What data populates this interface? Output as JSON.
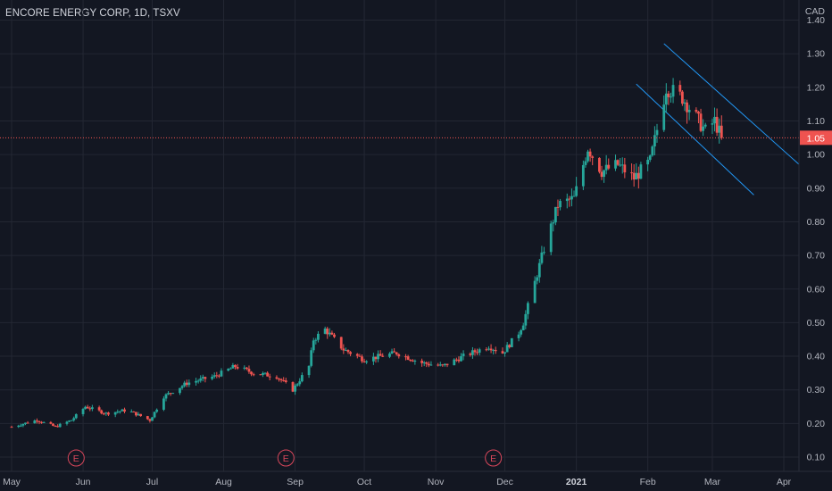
{
  "header": {
    "title": "ENCORE ENERGY CORP, 1D, TSXV"
  },
  "chart_data": {
    "type": "candlestick",
    "symbol": "ENCORE ENERGY CORP",
    "interval": "1D",
    "exchange": "TSXV",
    "currency": "CAD",
    "ylim": [
      0.07,
      1.42
    ],
    "y_ticks": [
      0.1,
      0.2,
      0.3,
      0.4,
      0.5,
      0.6,
      0.7,
      0.8,
      0.9,
      1.0,
      1.1,
      1.2,
      1.3,
      1.4
    ],
    "y_tick_labels": [
      "0.10",
      "0.20",
      "0.30",
      "0.40",
      "0.50",
      "0.60",
      "0.70",
      "0.80",
      "0.90",
      "1.00",
      "1.10",
      "1.20",
      "1.30",
      "1.40"
    ],
    "x_labels": [
      "May",
      "Jun",
      "Jul",
      "Aug",
      "Sep",
      "Oct",
      "Nov",
      "Dec",
      "2021",
      "Feb",
      "Mar",
      "Apr"
    ],
    "x_label_dates": [
      "2020-05-01",
      "2020-06-01",
      "2020-07-01",
      "2020-08-01",
      "2020-09-01",
      "2020-10-01",
      "2020-11-01",
      "2020-12-01",
      "2021-01-01",
      "2021-02-01",
      "2021-03-01",
      "2021-04-01"
    ],
    "bold_x_label": "2021",
    "last_price": {
      "label": "1.05",
      "value": 1.05,
      "color": "#ef5350"
    },
    "earnings_markers": [
      {
        "label": "E",
        "date": "2020-05-29"
      },
      {
        "label": "E",
        "date": "2020-08-28"
      },
      {
        "label": "E",
        "date": "2020-11-26"
      }
    ],
    "channel_lines": [
      {
        "from": {
          "date": "2021-02-08",
          "value": 1.33
        },
        "to": {
          "date": "2021-04-11",
          "value": 0.95
        }
      },
      {
        "from": {
          "date": "2021-01-27",
          "value": 1.21
        },
        "to": {
          "date": "2021-03-19",
          "value": 0.88
        }
      }
    ],
    "price_path": [
      [
        "2020-05-01",
        0.19
      ],
      [
        "2020-05-12",
        0.21
      ],
      [
        "2020-05-20",
        0.19
      ],
      [
        "2020-05-27",
        0.21
      ],
      [
        "2020-06-02",
        0.25
      ],
      [
        "2020-06-11",
        0.23
      ],
      [
        "2020-06-20",
        0.24
      ],
      [
        "2020-06-30",
        0.21
      ],
      [
        "2020-07-06",
        0.28
      ],
      [
        "2020-07-16",
        0.32
      ],
      [
        "2020-07-28",
        0.34
      ],
      [
        "2020-08-06",
        0.37
      ],
      [
        "2020-08-14",
        0.35
      ],
      [
        "2020-08-24",
        0.34
      ],
      [
        "2020-08-31",
        0.3
      ],
      [
        "2020-09-07",
        0.37
      ],
      [
        "2020-09-09",
        0.45
      ],
      [
        "2020-09-14",
        0.48
      ],
      [
        "2020-09-22",
        0.42
      ],
      [
        "2020-10-01",
        0.39
      ],
      [
        "2020-10-15",
        0.41
      ],
      [
        "2020-10-26",
        0.38
      ],
      [
        "2020-11-04",
        0.37
      ],
      [
        "2020-11-13",
        0.4
      ],
      [
        "2020-11-24",
        0.43
      ],
      [
        "2020-11-30",
        0.41
      ],
      [
        "2020-12-07",
        0.47
      ],
      [
        "2020-12-09",
        0.5
      ],
      [
        "2020-12-14",
        0.62
      ],
      [
        "2020-12-18",
        0.72
      ],
      [
        "2020-12-24",
        0.85
      ],
      [
        "2020-12-31",
        0.87
      ],
      [
        "2021-01-06",
        1.02
      ],
      [
        "2021-01-12",
        0.95
      ],
      [
        "2021-01-19",
        0.97
      ],
      [
        "2021-01-26",
        0.93
      ],
      [
        "2021-02-02",
        0.98
      ],
      [
        "2021-02-09",
        1.2
      ],
      [
        "2021-02-16",
        1.17
      ],
      [
        "2021-02-23",
        1.1
      ],
      [
        "2021-02-26",
        1.07
      ],
      [
        "2021-03-02",
        1.1
      ],
      [
        "2021-03-05",
        1.05
      ]
    ],
    "up_color": "#26a69a",
    "down_color": "#ef5350",
    "grid": true
  }
}
